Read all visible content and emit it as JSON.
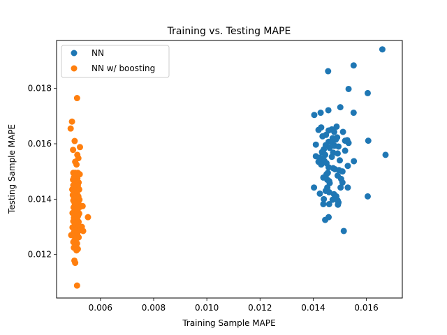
{
  "chart_data": {
    "type": "scatter",
    "title": "Training vs. Testing MAPE",
    "xlabel": "Training Sample MAPE",
    "ylabel": "Testing Sample MAPE",
    "xlim": [
      0.00435,
      0.01735
    ],
    "ylim": [
      0.01043,
      0.01973
    ],
    "xticks": [
      "0.006",
      "0.008",
      "0.010",
      "0.012",
      "0.014",
      "0.016"
    ],
    "xtick_values": [
      0.006,
      0.008,
      0.01,
      0.012,
      0.014,
      0.016
    ],
    "yticks": [
      "0.012",
      "0.014",
      "0.016",
      "0.018"
    ],
    "ytick_values": [
      0.012,
      0.014,
      0.016,
      0.018
    ],
    "grid": false,
    "legend_position": "top-left",
    "series": [
      {
        "name": "NN",
        "color": "#1f77b4",
        "points": [
          [
            0.0166,
            0.01941
          ],
          [
            0.01552,
            0.01883
          ],
          [
            0.01456,
            0.01862
          ],
          [
            0.01533,
            0.01798
          ],
          [
            0.01605,
            0.01783
          ],
          [
            0.01502,
            0.01732
          ],
          [
            0.01457,
            0.01721
          ],
          [
            0.01428,
            0.01712
          ],
          [
            0.01552,
            0.01712
          ],
          [
            0.01404,
            0.01704
          ],
          [
            0.01488,
            0.01662
          ],
          [
            0.0143,
            0.01659
          ],
          [
            0.0147,
            0.01652
          ],
          [
            0.0142,
            0.0165
          ],
          [
            0.01458,
            0.01648
          ],
          [
            0.01479,
            0.01643
          ],
          [
            0.01512,
            0.01643
          ],
          [
            0.01448,
            0.01632
          ],
          [
            0.01435,
            0.01627
          ],
          [
            0.0149,
            0.01623
          ],
          [
            0.01473,
            0.0162
          ],
          [
            0.01485,
            0.01615
          ],
          [
            0.01528,
            0.01613
          ],
          [
            0.0152,
            0.01611
          ],
          [
            0.01607,
            0.01611
          ],
          [
            0.01458,
            0.01607
          ],
          [
            0.0147,
            0.01605
          ],
          [
            0.01533,
            0.01603
          ],
          [
            0.0141,
            0.01597
          ],
          [
            0.01447,
            0.01595
          ],
          [
            0.0148,
            0.01593
          ],
          [
            0.01495,
            0.0159
          ],
          [
            0.01462,
            0.01585
          ],
          [
            0.0144,
            0.0158
          ],
          [
            0.0152,
            0.01575
          ],
          [
            0.01433,
            0.0157
          ],
          [
            0.01475,
            0.01568
          ],
          [
            0.01492,
            0.01565
          ],
          [
            0.01445,
            0.0156
          ],
          [
            0.01672,
            0.0156
          ],
          [
            0.0141,
            0.01555
          ],
          [
            0.0147,
            0.01553
          ],
          [
            0.01425,
            0.0155
          ],
          [
            0.01437,
            0.01545
          ],
          [
            0.015,
            0.0154
          ],
          [
            0.01442,
            0.01538
          ],
          [
            0.01553,
            0.01537
          ],
          [
            0.0142,
            0.01535
          ],
          [
            0.0145,
            0.0153
          ],
          [
            0.0143,
            0.01525
          ],
          [
            0.0153,
            0.0152
          ],
          [
            0.01458,
            0.01515
          ],
          [
            0.01475,
            0.01512
          ],
          [
            0.01482,
            0.01508
          ],
          [
            0.01497,
            0.01505
          ],
          [
            0.0151,
            0.015
          ],
          [
            0.01455,
            0.01495
          ],
          [
            0.0145,
            0.0149
          ],
          [
            0.01492,
            0.01485
          ],
          [
            0.01438,
            0.01478
          ],
          [
            0.01505,
            0.01473
          ],
          [
            0.01453,
            0.0147
          ],
          [
            0.0146,
            0.01465
          ],
          [
            0.0151,
            0.0146
          ],
          [
            0.01462,
            0.01458
          ],
          [
            0.01403,
            0.01442
          ],
          [
            0.01453,
            0.01442
          ],
          [
            0.01503,
            0.01442
          ],
          [
            0.0153,
            0.01442
          ],
          [
            0.01447,
            0.0143
          ],
          [
            0.0146,
            0.01425
          ],
          [
            0.01425,
            0.0142
          ],
          [
            0.01478,
            0.01418
          ],
          [
            0.01487,
            0.0141
          ],
          [
            0.01605,
            0.0141
          ],
          [
            0.0144,
            0.014
          ],
          [
            0.01473,
            0.01398
          ],
          [
            0.01492,
            0.01395
          ],
          [
            0.01495,
            0.01388
          ],
          [
            0.01438,
            0.01382
          ],
          [
            0.0146,
            0.01382
          ],
          [
            0.01493,
            0.0138
          ],
          [
            0.01458,
            0.01335
          ],
          [
            0.01445,
            0.01325
          ],
          [
            0.01515,
            0.01285
          ]
        ]
      },
      {
        "name": "NN w/ boosting",
        "color": "#ff7f0e",
        "points": [
          [
            0.00512,
            0.01765
          ],
          [
            0.00493,
            0.0168
          ],
          [
            0.00488,
            0.01655
          ],
          [
            0.00503,
            0.0161
          ],
          [
            0.00523,
            0.01588
          ],
          [
            0.00497,
            0.01578
          ],
          [
            0.00513,
            0.0156
          ],
          [
            0.00517,
            0.01548
          ],
          [
            0.00505,
            0.01535
          ],
          [
            0.0051,
            0.01525
          ],
          [
            0.00498,
            0.01495
          ],
          [
            0.00505,
            0.01495
          ],
          [
            0.00515,
            0.01495
          ],
          [
            0.00522,
            0.0149
          ],
          [
            0.00508,
            0.01485
          ],
          [
            0.005,
            0.01478
          ],
          [
            0.00513,
            0.01475
          ],
          [
            0.00497,
            0.0147
          ],
          [
            0.00505,
            0.01465
          ],
          [
            0.00518,
            0.0146
          ],
          [
            0.0051,
            0.01455
          ],
          [
            0.00498,
            0.0145
          ],
          [
            0.00515,
            0.01448
          ],
          [
            0.00503,
            0.0144
          ],
          [
            0.00494,
            0.01435
          ],
          [
            0.0052,
            0.01435
          ],
          [
            0.00508,
            0.0143
          ],
          [
            0.005,
            0.01425
          ],
          [
            0.00512,
            0.0142
          ],
          [
            0.00496,
            0.01415
          ],
          [
            0.00517,
            0.0141
          ],
          [
            0.00505,
            0.01408
          ],
          [
            0.00501,
            0.01405
          ],
          [
            0.00514,
            0.01403
          ],
          [
            0.00509,
            0.014
          ],
          [
            0.00521,
            0.01398
          ],
          [
            0.00498,
            0.01395
          ],
          [
            0.00506,
            0.0139
          ],
          [
            0.00512,
            0.01388
          ],
          [
            0.00503,
            0.01385
          ],
          [
            0.00518,
            0.01382
          ],
          [
            0.0051,
            0.01378
          ],
          [
            0.00533,
            0.01375
          ],
          [
            0.00523,
            0.01372
          ],
          [
            0.00499,
            0.0137
          ],
          [
            0.00507,
            0.01365
          ],
          [
            0.00514,
            0.0136
          ],
          [
            0.00502,
            0.01355
          ],
          [
            0.00495,
            0.0135
          ],
          [
            0.0052,
            0.01348
          ],
          [
            0.00509,
            0.01345
          ],
          [
            0.00516,
            0.0134
          ],
          [
            0.00553,
            0.01335
          ],
          [
            0.005,
            0.01333
          ],
          [
            0.00512,
            0.0133
          ],
          [
            0.00505,
            0.01325
          ],
          [
            0.00498,
            0.0132
          ],
          [
            0.00518,
            0.01318
          ],
          [
            0.0051,
            0.0131
          ],
          [
            0.00503,
            0.01305
          ],
          [
            0.0053,
            0.013
          ],
          [
            0.00495,
            0.01298
          ],
          [
            0.00515,
            0.01295
          ],
          [
            0.00508,
            0.0129
          ],
          [
            0.00523,
            0.01288
          ],
          [
            0.00535,
            0.01285
          ],
          [
            0.005,
            0.0128
          ],
          [
            0.00513,
            0.01275
          ],
          [
            0.0049,
            0.0127
          ],
          [
            0.00505,
            0.01265
          ],
          [
            0.00518,
            0.01262
          ],
          [
            0.0051,
            0.01258
          ],
          [
            0.00503,
            0.01252
          ],
          [
            0.00498,
            0.01245
          ],
          [
            0.00512,
            0.0124
          ],
          [
            0.005,
            0.01225
          ],
          [
            0.00508,
            0.01225
          ],
          [
            0.00515,
            0.0122
          ],
          [
            0.0051,
            0.01215
          ],
          [
            0.00502,
            0.01178
          ],
          [
            0.00505,
            0.0117
          ],
          [
            0.00512,
            0.01088
          ]
        ]
      }
    ]
  }
}
